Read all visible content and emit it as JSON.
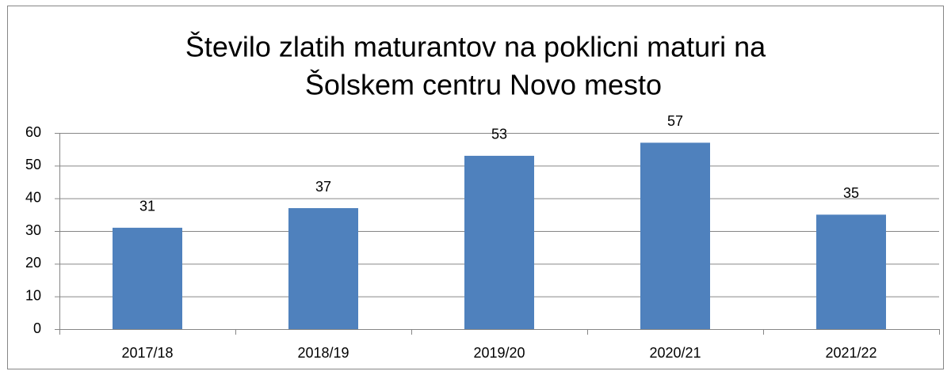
{
  "chart_data": {
    "type": "bar",
    "title": [
      "Število zlatih maturantov na poklicni maturi na",
      "Šolskem centru Novo mesto"
    ],
    "categories": [
      "2017/18",
      "2018/19",
      "2019/20",
      "2020/21",
      "2021/22"
    ],
    "values": [
      31,
      37,
      53,
      57,
      35
    ],
    "color": "#4f81bd",
    "ylim": [
      0,
      60
    ],
    "yticks": [
      0,
      10,
      20,
      30,
      40,
      50,
      60
    ],
    "grid": true
  }
}
